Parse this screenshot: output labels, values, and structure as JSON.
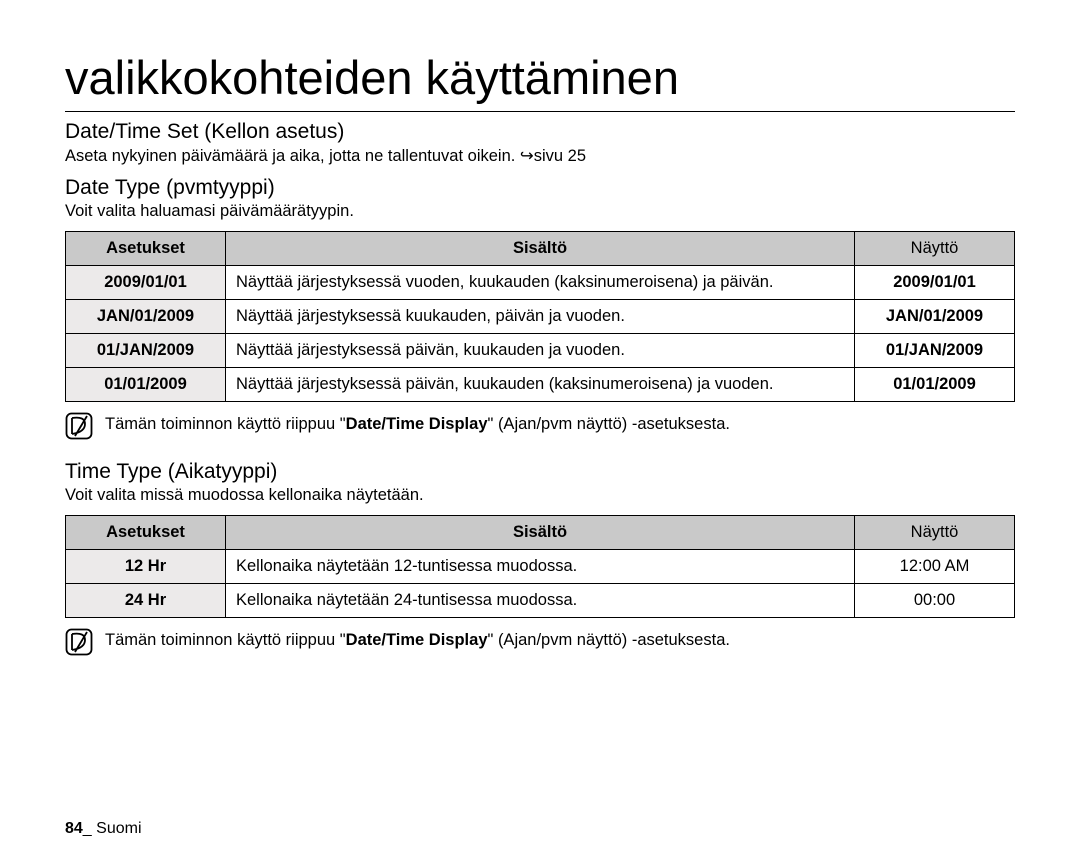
{
  "title": "valikkokohteiden käyttäminen",
  "section1": {
    "heading": "Date/Time Set (Kellon asetus)",
    "body": "Aseta nykyinen päivämäärä ja aika, jotta ne tallentuvat oikein. ↪sivu 25"
  },
  "section2": {
    "heading": "Date Type (pvmtyyppi)",
    "body": "Voit valita haluamasi päivämäärätyypin.",
    "table": {
      "headers": {
        "c1": "Asetukset",
        "c2": "Sisältö",
        "c3": "Näyttö"
      },
      "rows": [
        {
          "opt": "2009/01/01",
          "desc": "Näyttää järjestyksessä vuoden, kuukauden (kaksinumeroisena) ja päivän.",
          "disp": "2009/01/01"
        },
        {
          "opt": "JAN/01/2009",
          "desc": "Näyttää järjestyksessä kuukauden, päivän ja vuoden.",
          "disp": "JAN/01/2009"
        },
        {
          "opt": "01/JAN/2009",
          "desc": "Näyttää järjestyksessä päivän, kuukauden ja vuoden.",
          "disp": "01/JAN/2009"
        },
        {
          "opt": "01/01/2009",
          "desc": "Näyttää järjestyksessä päivän, kuukauden (kaksinumeroisena) ja vuoden.",
          "disp": "01/01/2009"
        }
      ]
    },
    "note_pre": "Tämän toiminnon käyttö riippuu \"",
    "note_bold": "Date/Time Display",
    "note_post": "\" (Ajan/pvm näyttö) -asetuksesta."
  },
  "section3": {
    "heading": "Time Type (Aikatyyppi)",
    "body": "Voit valita missä muodossa kellonaika näytetään.",
    "table": {
      "headers": {
        "c1": "Asetukset",
        "c2": "Sisältö",
        "c3": "Näyttö"
      },
      "rows": [
        {
          "opt": "12 Hr",
          "desc": "Kellonaika näytetään 12-tuntisessa muodossa.",
          "disp": "12:00 AM"
        },
        {
          "opt": "24 Hr",
          "desc": "Kellonaika näytetään 24-tuntisessa muodossa.",
          "disp": "00:00"
        }
      ]
    },
    "note_pre": "Tämän toiminnon käyttö riippuu \"",
    "note_bold": "Date/Time Display",
    "note_post": "\" (Ajan/pvm näyttö) -asetuksesta."
  },
  "footer": {
    "page": "84",
    "sep": "_ ",
    "lang": "Suomi"
  }
}
